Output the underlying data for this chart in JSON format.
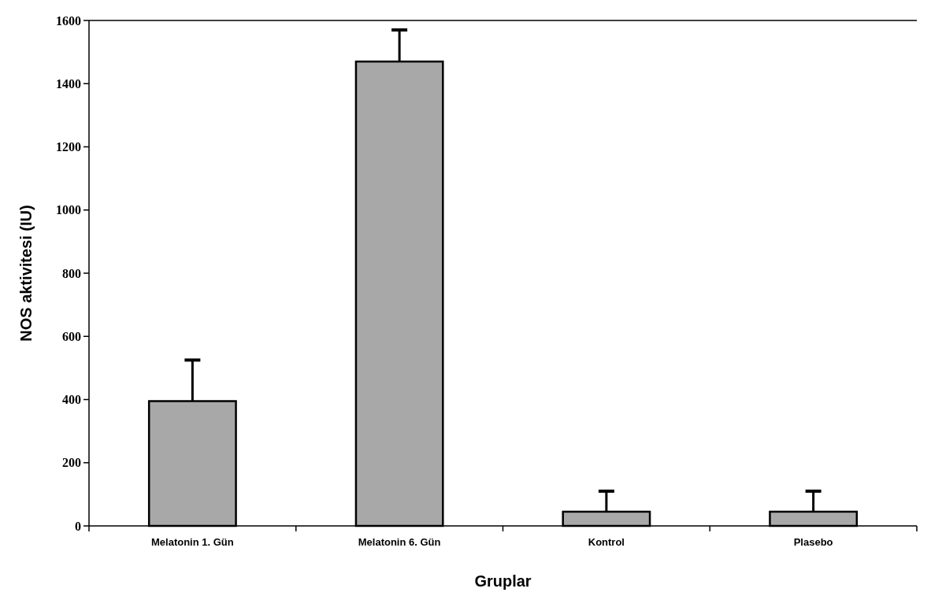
{
  "chart_data": {
    "type": "bar",
    "categories": [
      "Melatonin 1. Gün",
      "Melatonin 6. Gün",
      "Kontrol",
      "Plasebo"
    ],
    "values": [
      395,
      1470,
      45,
      45
    ],
    "errors": [
      [
        395,
        525
      ],
      [
        1470,
        1570
      ],
      [
        45,
        110
      ],
      [
        45,
        110
      ]
    ],
    "color": "#a8a8a8",
    "xlabel": "Gruplar",
    "ylabel": "NOS aktivitesi (IU)",
    "ylim": [
      0,
      1600
    ],
    "yticks": [
      0,
      200,
      400,
      600,
      800,
      1000,
      1200,
      1400,
      1600
    ],
    "grid": false
  }
}
